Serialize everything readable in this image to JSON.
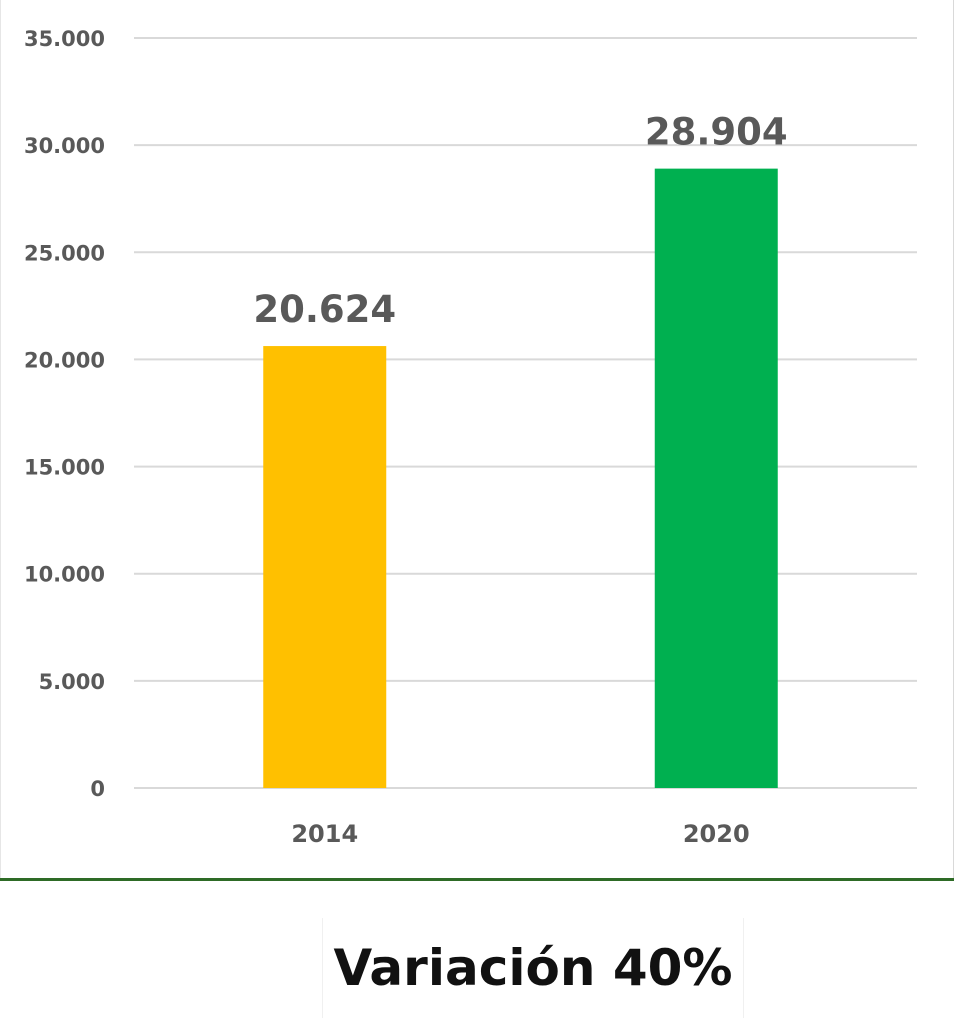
{
  "chart_data": {
    "type": "bar",
    "categories": [
      "2014",
      "2020"
    ],
    "values": [
      20624,
      28904
    ],
    "value_labels": [
      "20.624",
      "28.904"
    ],
    "colors": [
      "#FFC000",
      "#00B050"
    ],
    "ylim": [
      0,
      35000
    ],
    "yticks": [
      0,
      5000,
      10000,
      15000,
      20000,
      25000,
      30000,
      35000
    ],
    "ytick_labels": [
      "0",
      "5.000",
      "10.000",
      "15.000",
      "20.000",
      "25.000",
      "30.000",
      "35.000"
    ],
    "grid": true,
    "gridline_color": "#d9d9d9",
    "title": "",
    "xlabel": "",
    "ylabel": ""
  },
  "footer": {
    "variation_text": "Variación 40%"
  }
}
